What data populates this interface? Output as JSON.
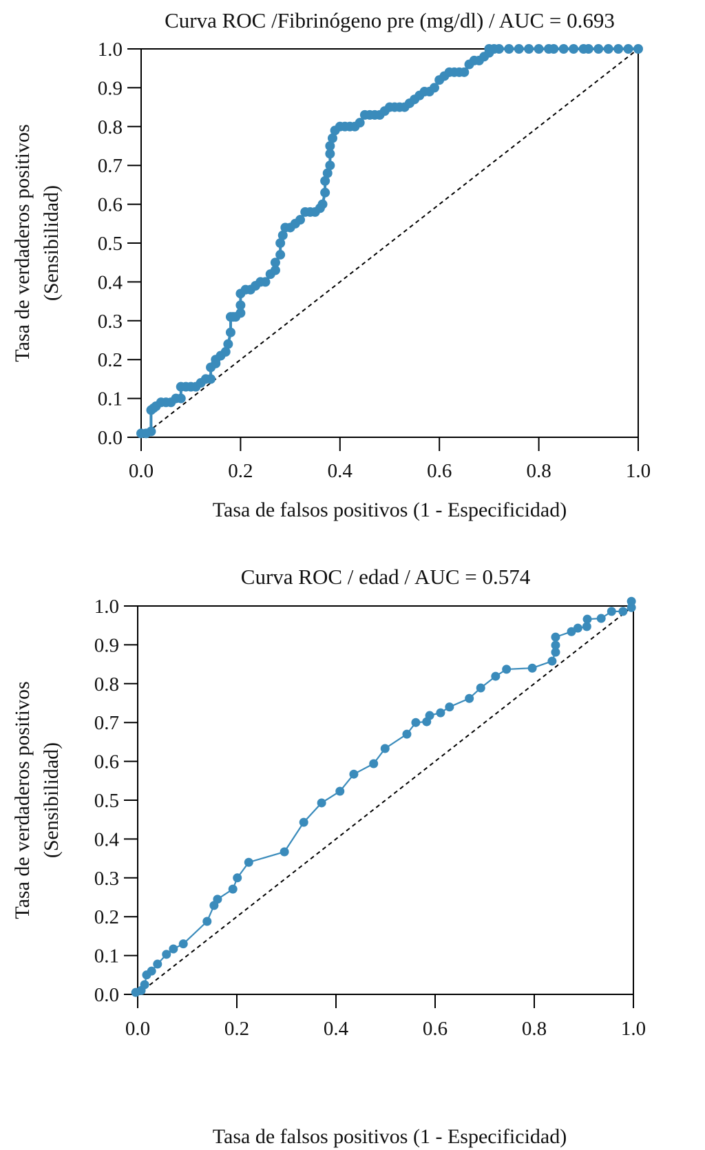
{
  "chart_data": [
    {
      "type": "line",
      "title": "Curva ROC /Fibrinógeno pre (mg/dl) / AUC = 0.693",
      "xlabel": "Tasa de falsos positivos (1 - Especificidad)",
      "ylabel_line1": "Tasa de verdaderos positivos",
      "ylabel_line2": "(Sensibilidad)",
      "xlim": [
        0,
        1
      ],
      "ylim": [
        0,
        1
      ],
      "xticks": [
        "0.0",
        "0.2",
        "0.4",
        "0.6",
        "0.8",
        "1.0"
      ],
      "yticks": [
        "0.0",
        "0.1",
        "0.2",
        "0.3",
        "0.4",
        "0.5",
        "0.6",
        "0.7",
        "0.8",
        "0.9",
        "1.0"
      ],
      "grid": false,
      "color": "#3a8bbb",
      "reference_line": {
        "style": "dashed",
        "from": [
          0,
          0
        ],
        "to": [
          1,
          1
        ],
        "color": "#000000"
      },
      "series": [
        {
          "name": "ROC",
          "marker": "circle",
          "x": [
            0.0,
            0.01,
            0.02,
            0.02,
            0.025,
            0.03,
            0.04,
            0.05,
            0.06,
            0.07,
            0.08,
            0.08,
            0.09,
            0.1,
            0.11,
            0.12,
            0.13,
            0.14,
            0.14,
            0.15,
            0.15,
            0.16,
            0.17,
            0.175,
            0.18,
            0.18,
            0.185,
            0.19,
            0.2,
            0.2,
            0.2,
            0.21,
            0.22,
            0.23,
            0.24,
            0.25,
            0.26,
            0.27,
            0.27,
            0.28,
            0.28,
            0.285,
            0.29,
            0.3,
            0.31,
            0.32,
            0.33,
            0.34,
            0.35,
            0.36,
            0.365,
            0.37,
            0.37,
            0.375,
            0.38,
            0.38,
            0.38,
            0.385,
            0.39,
            0.4,
            0.41,
            0.42,
            0.43,
            0.44,
            0.45,
            0.46,
            0.47,
            0.48,
            0.49,
            0.5,
            0.51,
            0.52,
            0.53,
            0.54,
            0.55,
            0.56,
            0.57,
            0.58,
            0.59,
            0.6,
            0.61,
            0.62,
            0.63,
            0.64,
            0.65,
            0.66,
            0.67,
            0.68,
            0.69,
            0.7,
            0.7,
            0.71,
            0.72,
            0.74,
            0.76,
            0.78,
            0.8,
            0.82,
            0.83,
            0.85,
            0.87,
            0.89,
            0.9,
            0.92,
            0.94,
            0.96,
            0.98,
            1.0
          ],
          "y": [
            0.01,
            0.01,
            0.015,
            0.07,
            0.075,
            0.08,
            0.09,
            0.09,
            0.09,
            0.1,
            0.1,
            0.13,
            0.13,
            0.13,
            0.13,
            0.14,
            0.15,
            0.15,
            0.18,
            0.19,
            0.2,
            0.21,
            0.22,
            0.24,
            0.27,
            0.31,
            0.31,
            0.31,
            0.32,
            0.34,
            0.37,
            0.38,
            0.38,
            0.39,
            0.4,
            0.4,
            0.42,
            0.43,
            0.45,
            0.47,
            0.5,
            0.52,
            0.54,
            0.54,
            0.55,
            0.56,
            0.58,
            0.58,
            0.58,
            0.59,
            0.6,
            0.63,
            0.66,
            0.68,
            0.7,
            0.73,
            0.75,
            0.77,
            0.79,
            0.8,
            0.8,
            0.8,
            0.8,
            0.81,
            0.83,
            0.83,
            0.83,
            0.83,
            0.84,
            0.85,
            0.85,
            0.85,
            0.85,
            0.86,
            0.87,
            0.88,
            0.89,
            0.89,
            0.9,
            0.92,
            0.93,
            0.94,
            0.94,
            0.94,
            0.94,
            0.96,
            0.97,
            0.97,
            0.98,
            0.99,
            1.0,
            1.0,
            1.0,
            1.0,
            1.0,
            1.0,
            1.0,
            1.0,
            1.0,
            1.0,
            1.0,
            1.0,
            1.0,
            1.0,
            1.0,
            1.0,
            1.0,
            1.0
          ]
        }
      ]
    },
    {
      "type": "line",
      "title": "Curva ROC / edad / AUC = 0.574",
      "xlabel": "Tasa de falsos positivos (1 - Especificidad)",
      "ylabel_line1": "Tasa de verdaderos positivos",
      "ylabel_line2": "(Sensibilidad)",
      "xlim": [
        0,
        1
      ],
      "ylim": [
        0,
        1
      ],
      "xticks": [
        "0.0",
        "0.2",
        "0.4",
        "0.6",
        "0.8",
        "1.0"
      ],
      "yticks": [
        "0.0",
        "0.1",
        "0.2",
        "0.3",
        "0.4",
        "0.5",
        "0.6",
        "0.7",
        "0.8",
        "0.9",
        "1.0"
      ],
      "grid": false,
      "color": "#3a8bbb",
      "reference_line": {
        "style": "dashed",
        "from": [
          0,
          0
        ],
        "to": [
          1,
          1
        ],
        "color": "#000000"
      },
      "series": [
        {
          "name": "ROC",
          "marker": "circle",
          "x": [
            -0.004,
            0.007,
            0.014,
            0.018,
            0.028,
            0.04,
            0.058,
            0.072,
            0.092,
            0.14,
            0.154,
            0.161,
            0.192,
            0.201,
            0.224,
            0.296,
            0.335,
            0.371,
            0.408,
            0.436,
            0.476,
            0.499,
            0.543,
            0.561,
            0.583,
            0.589,
            0.611,
            0.629,
            0.669,
            0.692,
            0.722,
            0.744,
            0.796,
            0.836,
            0.843,
            0.843,
            0.843,
            0.875,
            0.888,
            0.906,
            0.907,
            0.935,
            0.956,
            0.979,
            0.996,
            0.996
          ],
          "y": [
            0.005,
            0.01,
            0.025,
            0.05,
            0.06,
            0.078,
            0.103,
            0.117,
            0.13,
            0.188,
            0.229,
            0.245,
            0.271,
            0.3,
            0.34,
            0.367,
            0.443,
            0.493,
            0.523,
            0.567,
            0.594,
            0.633,
            0.67,
            0.7,
            0.702,
            0.718,
            0.725,
            0.74,
            0.762,
            0.789,
            0.819,
            0.837,
            0.84,
            0.858,
            0.881,
            0.899,
            0.92,
            0.934,
            0.943,
            0.947,
            0.966,
            0.968,
            0.986,
            0.986,
            0.996,
            1.012
          ]
        }
      ]
    }
  ]
}
